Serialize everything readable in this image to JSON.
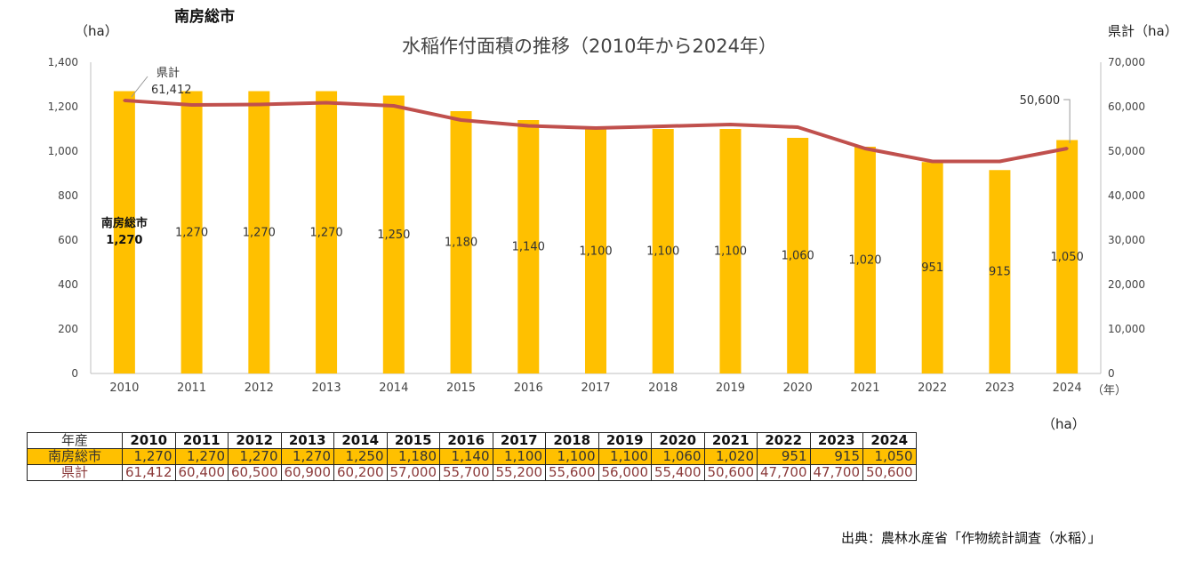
{
  "region": "南房総市",
  "unit_left": "（ha）",
  "unit_right": "県計（ha）",
  "year_unit": "（年）",
  "table_unit": "（ha）",
  "source": "出典：農林水産省「作物統計調査（水稲）」",
  "colors": {
    "bar": "#FFC000",
    "line": "#C0504D",
    "axis": "#BFBFBF"
  },
  "chart_data": {
    "type": "bar",
    "title": "水稲作付面積の推移（2010年から2024年）",
    "categories": [
      "2010",
      "2011",
      "2012",
      "2013",
      "2014",
      "2015",
      "2016",
      "2017",
      "2018",
      "2019",
      "2020",
      "2021",
      "2022",
      "2023",
      "2024"
    ],
    "series": [
      {
        "name": "南房総市",
        "type": "bar",
        "axis": "left",
        "values": [
          1270,
          1270,
          1270,
          1270,
          1250,
          1180,
          1140,
          1100,
          1100,
          1100,
          1060,
          1020,
          951,
          915,
          1050
        ]
      },
      {
        "name": "県計",
        "type": "line",
        "axis": "right",
        "values": [
          61412,
          60400,
          60500,
          60900,
          60200,
          57000,
          55700,
          55200,
          55600,
          56000,
          55400,
          50600,
          47700,
          47700,
          50600
        ]
      }
    ],
    "bar_labels": [
      "1,270",
      "1,270",
      "1,270",
      "1,270",
      "1,250",
      "1,180",
      "1,140",
      "1,100",
      "1,100",
      "1,100",
      "1,060",
      "1,020",
      "951",
      "915",
      "1,050"
    ],
    "ylim_left": [
      0,
      1400
    ],
    "yticks_left": [
      "0",
      "200",
      "400",
      "600",
      "800",
      "1,000",
      "1,200",
      "1,400"
    ],
    "ylim_right": [
      0,
      70000
    ],
    "yticks_right": [
      "0",
      "10,000",
      "20,000",
      "30,000",
      "40,000",
      "50,000",
      "60,000",
      "70,000"
    ],
    "annotations": {
      "first_bar_series": "南房総市",
      "first_bar_value": "1,270",
      "line_first_name": "県計",
      "line_first_value": "61,412",
      "line_last_value": "50,600"
    }
  },
  "table": {
    "header_label": "年産",
    "rows": [
      {
        "label": "南房総市",
        "values": [
          "1,270",
          "1,270",
          "1,270",
          "1,270",
          "1,250",
          "1,180",
          "1,140",
          "1,100",
          "1,100",
          "1,100",
          "1,060",
          "1,020",
          "951",
          "915",
          "1,050"
        ]
      },
      {
        "label": "県計",
        "values": [
          "61,412",
          "60,400",
          "60,500",
          "60,900",
          "60,200",
          "57,000",
          "55,700",
          "55,200",
          "55,600",
          "56,000",
          "55,400",
          "50,600",
          "47,700",
          "47,700",
          "50,600"
        ]
      }
    ]
  }
}
